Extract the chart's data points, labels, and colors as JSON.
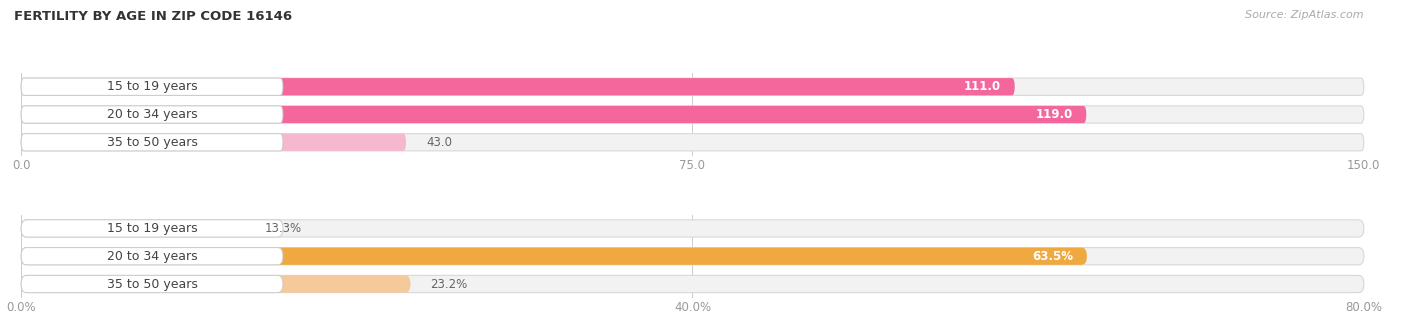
{
  "title": "FERTILITY BY AGE IN ZIP CODE 16146",
  "source": "Source: ZipAtlas.com",
  "top_chart": {
    "categories": [
      "15 to 19 years",
      "20 to 34 years",
      "35 to 50 years"
    ],
    "values": [
      111.0,
      119.0,
      43.0
    ],
    "xlim": [
      0,
      150.0
    ],
    "xticks": [
      0.0,
      75.0,
      150.0
    ],
    "xtick_labels": [
      "0.0",
      "75.0",
      "150.0"
    ],
    "bar_colors": [
      "#f4679d",
      "#f4679d",
      "#f5b8ce"
    ],
    "bar_bg_color": "#f2f2f2",
    "label_color_inside": "#ffffff",
    "label_color_outside": "#888888",
    "label_threshold": 100,
    "value_format": "{}"
  },
  "bottom_chart": {
    "categories": [
      "15 to 19 years",
      "20 to 34 years",
      "35 to 50 years"
    ],
    "values": [
      13.3,
      63.5,
      23.2
    ],
    "xlim": [
      0,
      80.0
    ],
    "xticks": [
      0.0,
      40.0,
      80.0
    ],
    "xtick_labels": [
      "0.0%",
      "40.0%",
      "80.0%"
    ],
    "bar_colors": [
      "#f5c99a",
      "#f0a840",
      "#f5c99a"
    ],
    "bar_bg_color": "#f2f2f2",
    "label_color_inside": "#ffffff",
    "label_color_outside": "#888888",
    "label_threshold": 60,
    "value_format": "{}%"
  },
  "bg_color": "#ffffff",
  "bar_height": 0.62,
  "title_fontsize": 9.5,
  "source_fontsize": 8,
  "label_fontsize": 8.5,
  "tick_fontsize": 8.5,
  "cat_fontsize": 9
}
